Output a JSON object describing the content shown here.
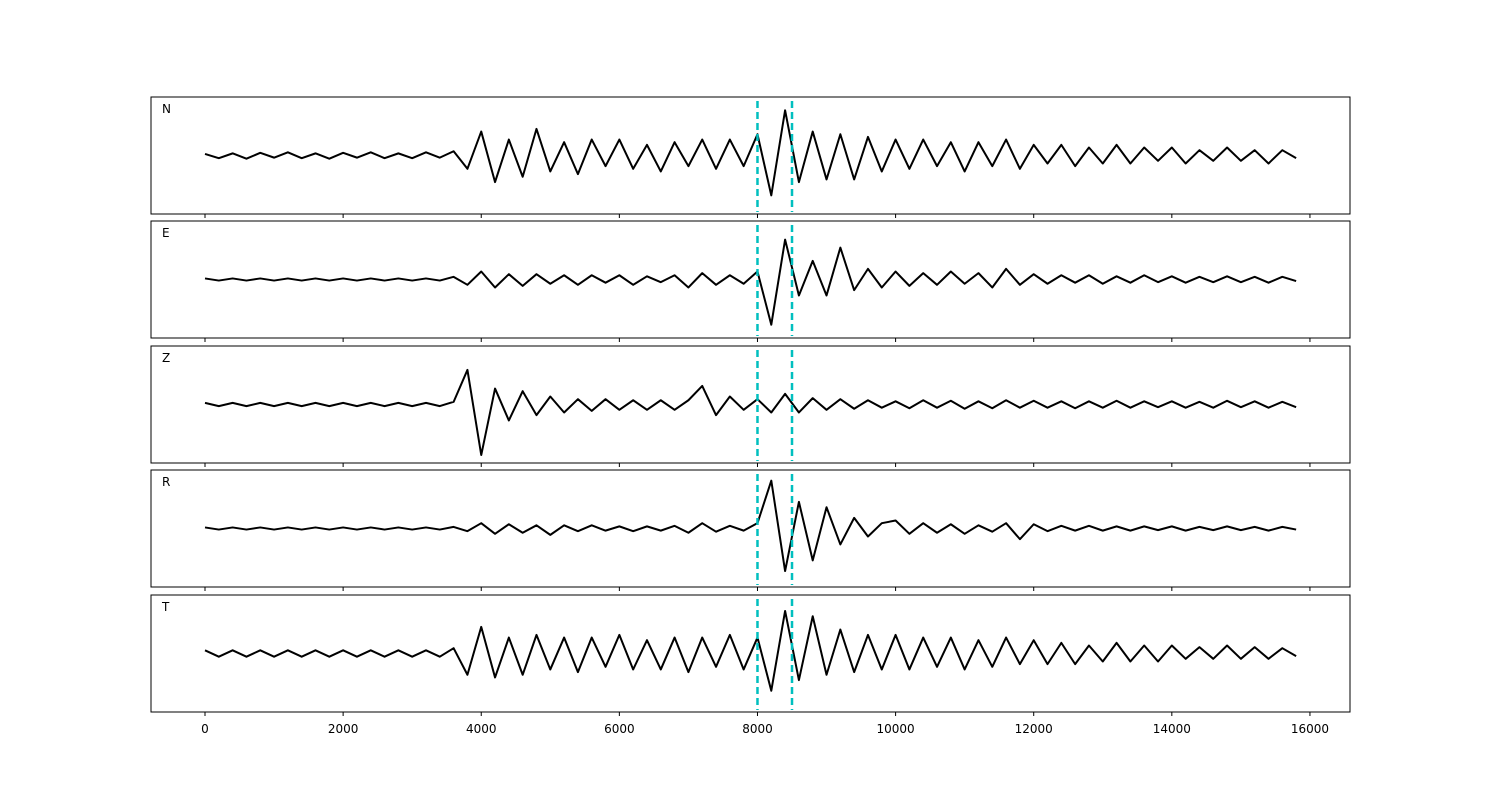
{
  "chart_data": {
    "type": "line",
    "layout": "stacked",
    "x": [
      0,
      200,
      400,
      600,
      800,
      1000,
      1200,
      1400,
      1600,
      1800,
      2000,
      2200,
      2400,
      2600,
      2800,
      3000,
      3200,
      3400,
      3600,
      3800,
      4000,
      4200,
      4400,
      4600,
      4800,
      5000,
      5200,
      5400,
      5600,
      5800,
      6000,
      6200,
      6400,
      6600,
      6800,
      7000,
      7200,
      7400,
      7600,
      7800,
      8000,
      8200,
      8400,
      8600,
      8800,
      9000,
      9200,
      9400,
      9600,
      9800,
      10000,
      10200,
      10400,
      10600,
      10800,
      11000,
      11200,
      11400,
      11600,
      11800,
      12000,
      12200,
      12400,
      12600,
      12800,
      13000,
      13200,
      13400,
      13600,
      13800,
      14000,
      14200,
      14400,
      14600,
      14800,
      15000,
      15200,
      15400,
      15600,
      15800
    ],
    "xlim": [
      -782,
      16580
    ],
    "xticks": [
      0,
      2000,
      4000,
      6000,
      8000,
      10000,
      12000,
      14000,
      16000
    ],
    "ylim": [
      -1.1,
      1.1
    ],
    "markers": [
      8000,
      8500
    ],
    "marker_color": "#00bfbf",
    "series": [
      {
        "name": "N",
        "color": "#000000",
        "values": [
          0.03,
          -0.05,
          0.04,
          -0.06,
          0.05,
          -0.04,
          0.06,
          -0.05,
          0.04,
          -0.06,
          0.05,
          -0.04,
          0.06,
          -0.05,
          0.04,
          -0.05,
          0.06,
          -0.04,
          0.08,
          -0.25,
          0.45,
          -0.5,
          0.3,
          -0.4,
          0.5,
          -0.3,
          0.25,
          -0.35,
          0.3,
          -0.2,
          0.3,
          -0.25,
          0.2,
          -0.3,
          0.25,
          -0.2,
          0.3,
          -0.25,
          0.3,
          -0.2,
          0.4,
          -0.75,
          0.85,
          -0.5,
          0.45,
          -0.45,
          0.4,
          -0.45,
          0.35,
          -0.3,
          0.3,
          -0.25,
          0.3,
          -0.2,
          0.25,
          -0.3,
          0.25,
          -0.2,
          0.3,
          -0.25,
          0.2,
          -0.15,
          0.2,
          -0.2,
          0.15,
          -0.15,
          0.2,
          -0.15,
          0.15,
          -0.1,
          0.15,
          -0.15,
          0.1,
          -0.1,
          0.15,
          -0.1,
          0.1,
          -0.15,
          0.1,
          -0.05
        ]
      },
      {
        "name": "E",
        "color": "#000000",
        "values": [
          0.02,
          -0.02,
          0.02,
          -0.02,
          0.02,
          -0.02,
          0.02,
          -0.02,
          0.02,
          -0.02,
          0.02,
          -0.02,
          0.02,
          -0.02,
          0.02,
          -0.02,
          0.02,
          -0.02,
          0.05,
          -0.1,
          0.15,
          -0.15,
          0.1,
          -0.12,
          0.1,
          -0.08,
          0.08,
          -0.1,
          0.08,
          -0.06,
          0.08,
          -0.1,
          0.06,
          -0.05,
          0.08,
          -0.15,
          0.12,
          -0.1,
          0.08,
          -0.08,
          0.15,
          -0.85,
          0.75,
          -0.3,
          0.35,
          -0.3,
          0.6,
          -0.2,
          0.2,
          -0.15,
          0.15,
          -0.12,
          0.12,
          -0.1,
          0.15,
          -0.08,
          0.12,
          -0.15,
          0.2,
          -0.1,
          0.1,
          -0.08,
          0.08,
          -0.06,
          0.08,
          -0.08,
          0.06,
          -0.06,
          0.08,
          -0.05,
          0.06,
          -0.06,
          0.05,
          -0.05,
          0.06,
          -0.05,
          0.05,
          -0.06,
          0.05,
          -0.03
        ]
      },
      {
        "name": "Z",
        "color": "#000000",
        "values": [
          0.03,
          -0.03,
          0.03,
          -0.03,
          0.03,
          -0.03,
          0.03,
          -0.03,
          0.03,
          -0.03,
          0.03,
          -0.03,
          0.03,
          -0.03,
          0.03,
          -0.03,
          0.03,
          -0.03,
          0.05,
          0.65,
          -0.95,
          0.3,
          -0.3,
          0.25,
          -0.2,
          0.15,
          -0.15,
          0.1,
          -0.12,
          0.1,
          -0.1,
          0.08,
          -0.1,
          0.08,
          -0.1,
          0.08,
          0.35,
          -0.2,
          0.15,
          -0.1,
          0.1,
          -0.15,
          0.2,
          -0.15,
          0.12,
          -0.1,
          0.1,
          -0.08,
          0.08,
          -0.06,
          0.06,
          -0.07,
          0.08,
          -0.06,
          0.07,
          -0.08,
          0.06,
          -0.07,
          0.08,
          -0.06,
          0.07,
          -0.06,
          0.06,
          -0.07,
          0.06,
          -0.06,
          0.07,
          -0.06,
          0.06,
          -0.05,
          0.06,
          -0.06,
          0.05,
          -0.06,
          0.07,
          -0.05,
          0.06,
          -0.06,
          0.05,
          -0.05
        ]
      },
      {
        "name": "R",
        "color": "#000000",
        "values": [
          0.02,
          -0.02,
          0.02,
          -0.02,
          0.02,
          -0.02,
          0.02,
          -0.02,
          0.02,
          -0.02,
          0.02,
          -0.02,
          0.02,
          -0.02,
          0.02,
          -0.02,
          0.02,
          -0.02,
          0.03,
          -0.05,
          0.1,
          -0.1,
          0.08,
          -0.08,
          0.06,
          -0.12,
          0.06,
          -0.05,
          0.06,
          -0.04,
          0.04,
          -0.05,
          0.04,
          -0.04,
          0.05,
          -0.08,
          0.1,
          -0.06,
          0.05,
          -0.04,
          0.1,
          0.9,
          -0.8,
          0.5,
          -0.6,
          0.4,
          -0.3,
          0.2,
          -0.15,
          0.1,
          0.15,
          -0.1,
          0.1,
          -0.08,
          0.08,
          -0.1,
          0.06,
          -0.06,
          0.1,
          -0.2,
          0.08,
          -0.05,
          0.05,
          -0.04,
          0.05,
          -0.04,
          0.04,
          -0.04,
          0.04,
          -0.03,
          0.04,
          -0.04,
          0.03,
          -0.03,
          0.04,
          -0.03,
          0.03,
          -0.04,
          0.03,
          -0.02
        ]
      },
      {
        "name": "T",
        "color": "#000000",
        "values": [
          0.06,
          -0.06,
          0.06,
          -0.06,
          0.06,
          -0.06,
          0.06,
          -0.06,
          0.06,
          -0.06,
          0.06,
          -0.06,
          0.06,
          -0.06,
          0.06,
          -0.06,
          0.06,
          -0.06,
          0.1,
          -0.4,
          0.5,
          -0.45,
          0.3,
          -0.4,
          0.35,
          -0.3,
          0.3,
          -0.35,
          0.3,
          -0.25,
          0.35,
          -0.3,
          0.25,
          -0.3,
          0.3,
          -0.35,
          0.3,
          -0.25,
          0.35,
          -0.3,
          0.3,
          -0.7,
          0.8,
          -0.5,
          0.7,
          -0.4,
          0.45,
          -0.35,
          0.35,
          -0.3,
          0.35,
          -0.3,
          0.3,
          -0.25,
          0.3,
          -0.3,
          0.25,
          -0.25,
          0.3,
          -0.2,
          0.25,
          -0.2,
          0.2,
          -0.2,
          0.15,
          -0.15,
          0.2,
          -0.15,
          0.15,
          -0.15,
          0.15,
          -0.1,
          0.12,
          -0.1,
          0.15,
          -0.1,
          0.12,
          -0.1,
          0.1,
          -0.05
        ]
      }
    ]
  }
}
